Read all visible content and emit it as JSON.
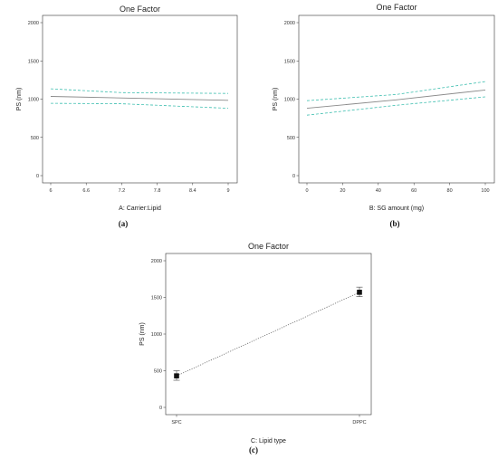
{
  "chart_data": [
    {
      "type": "line",
      "panel_label": "(a)",
      "title": "One Factor",
      "xlabel": "A: Carrier:Lipid",
      "ylabel": "PS (nm)",
      "x_ticks": [
        "6",
        "6.6",
        "7.2",
        "7.8",
        "8.4",
        "9"
      ],
      "y_ticks": [
        "0",
        "500",
        "1000",
        "1500",
        "2000"
      ],
      "xlim": [
        6,
        9
      ],
      "ylim": [
        0,
        2000
      ],
      "series": [
        {
          "role": "prediction",
          "color": "#8a8a8a",
          "style": "solid",
          "x": [
            6,
            9
          ],
          "y": [
            1035,
            985
          ]
        },
        {
          "role": "upper-ci",
          "color": "#3fbfb0",
          "style": "dashed",
          "x": [
            6,
            7.2,
            9
          ],
          "y": [
            1135,
            1085,
            1075
          ]
        },
        {
          "role": "lower-ci",
          "color": "#3fbfb0",
          "style": "dashed",
          "x": [
            6,
            7.2,
            9
          ],
          "y": [
            945,
            940,
            880
          ]
        }
      ]
    },
    {
      "type": "line",
      "panel_label": "(b)",
      "title": "One Factor",
      "xlabel": "B: SG amount (mg)",
      "ylabel": "PS (nm)",
      "x_ticks": [
        "0",
        "20",
        "40",
        "60",
        "80",
        "100"
      ],
      "y_ticks": [
        "0",
        "500",
        "1000",
        "1500",
        "2000"
      ],
      "xlim": [
        0,
        100
      ],
      "ylim": [
        0,
        2000
      ],
      "series": [
        {
          "role": "prediction",
          "color": "#8a8a8a",
          "style": "solid",
          "x": [
            0,
            50,
            100
          ],
          "y": [
            880,
            990,
            1120
          ]
        },
        {
          "role": "upper-ci",
          "color": "#3fbfb0",
          "style": "dashed",
          "x": [
            0,
            50,
            100
          ],
          "y": [
            980,
            1060,
            1230
          ]
        },
        {
          "role": "lower-ci",
          "color": "#3fbfb0",
          "style": "dashed",
          "x": [
            0,
            50,
            100
          ],
          "y": [
            790,
            920,
            1030
          ]
        }
      ]
    },
    {
      "type": "scatter",
      "panel_label": "(c)",
      "title": "One Factor",
      "xlabel": "C: Lipid type",
      "ylabel": "PS (nm)",
      "categories": [
        "SPC",
        "DPPC"
      ],
      "y_ticks": [
        "0",
        "500",
        "1000",
        "1500",
        "2000"
      ],
      "ylim": [
        0,
        2000
      ],
      "values": [
        430,
        1570
      ],
      "errors": [
        {
          "low": 370,
          "high": 500
        },
        {
          "low": 1510,
          "high": 1640
        }
      ],
      "connector": "dotted"
    }
  ]
}
